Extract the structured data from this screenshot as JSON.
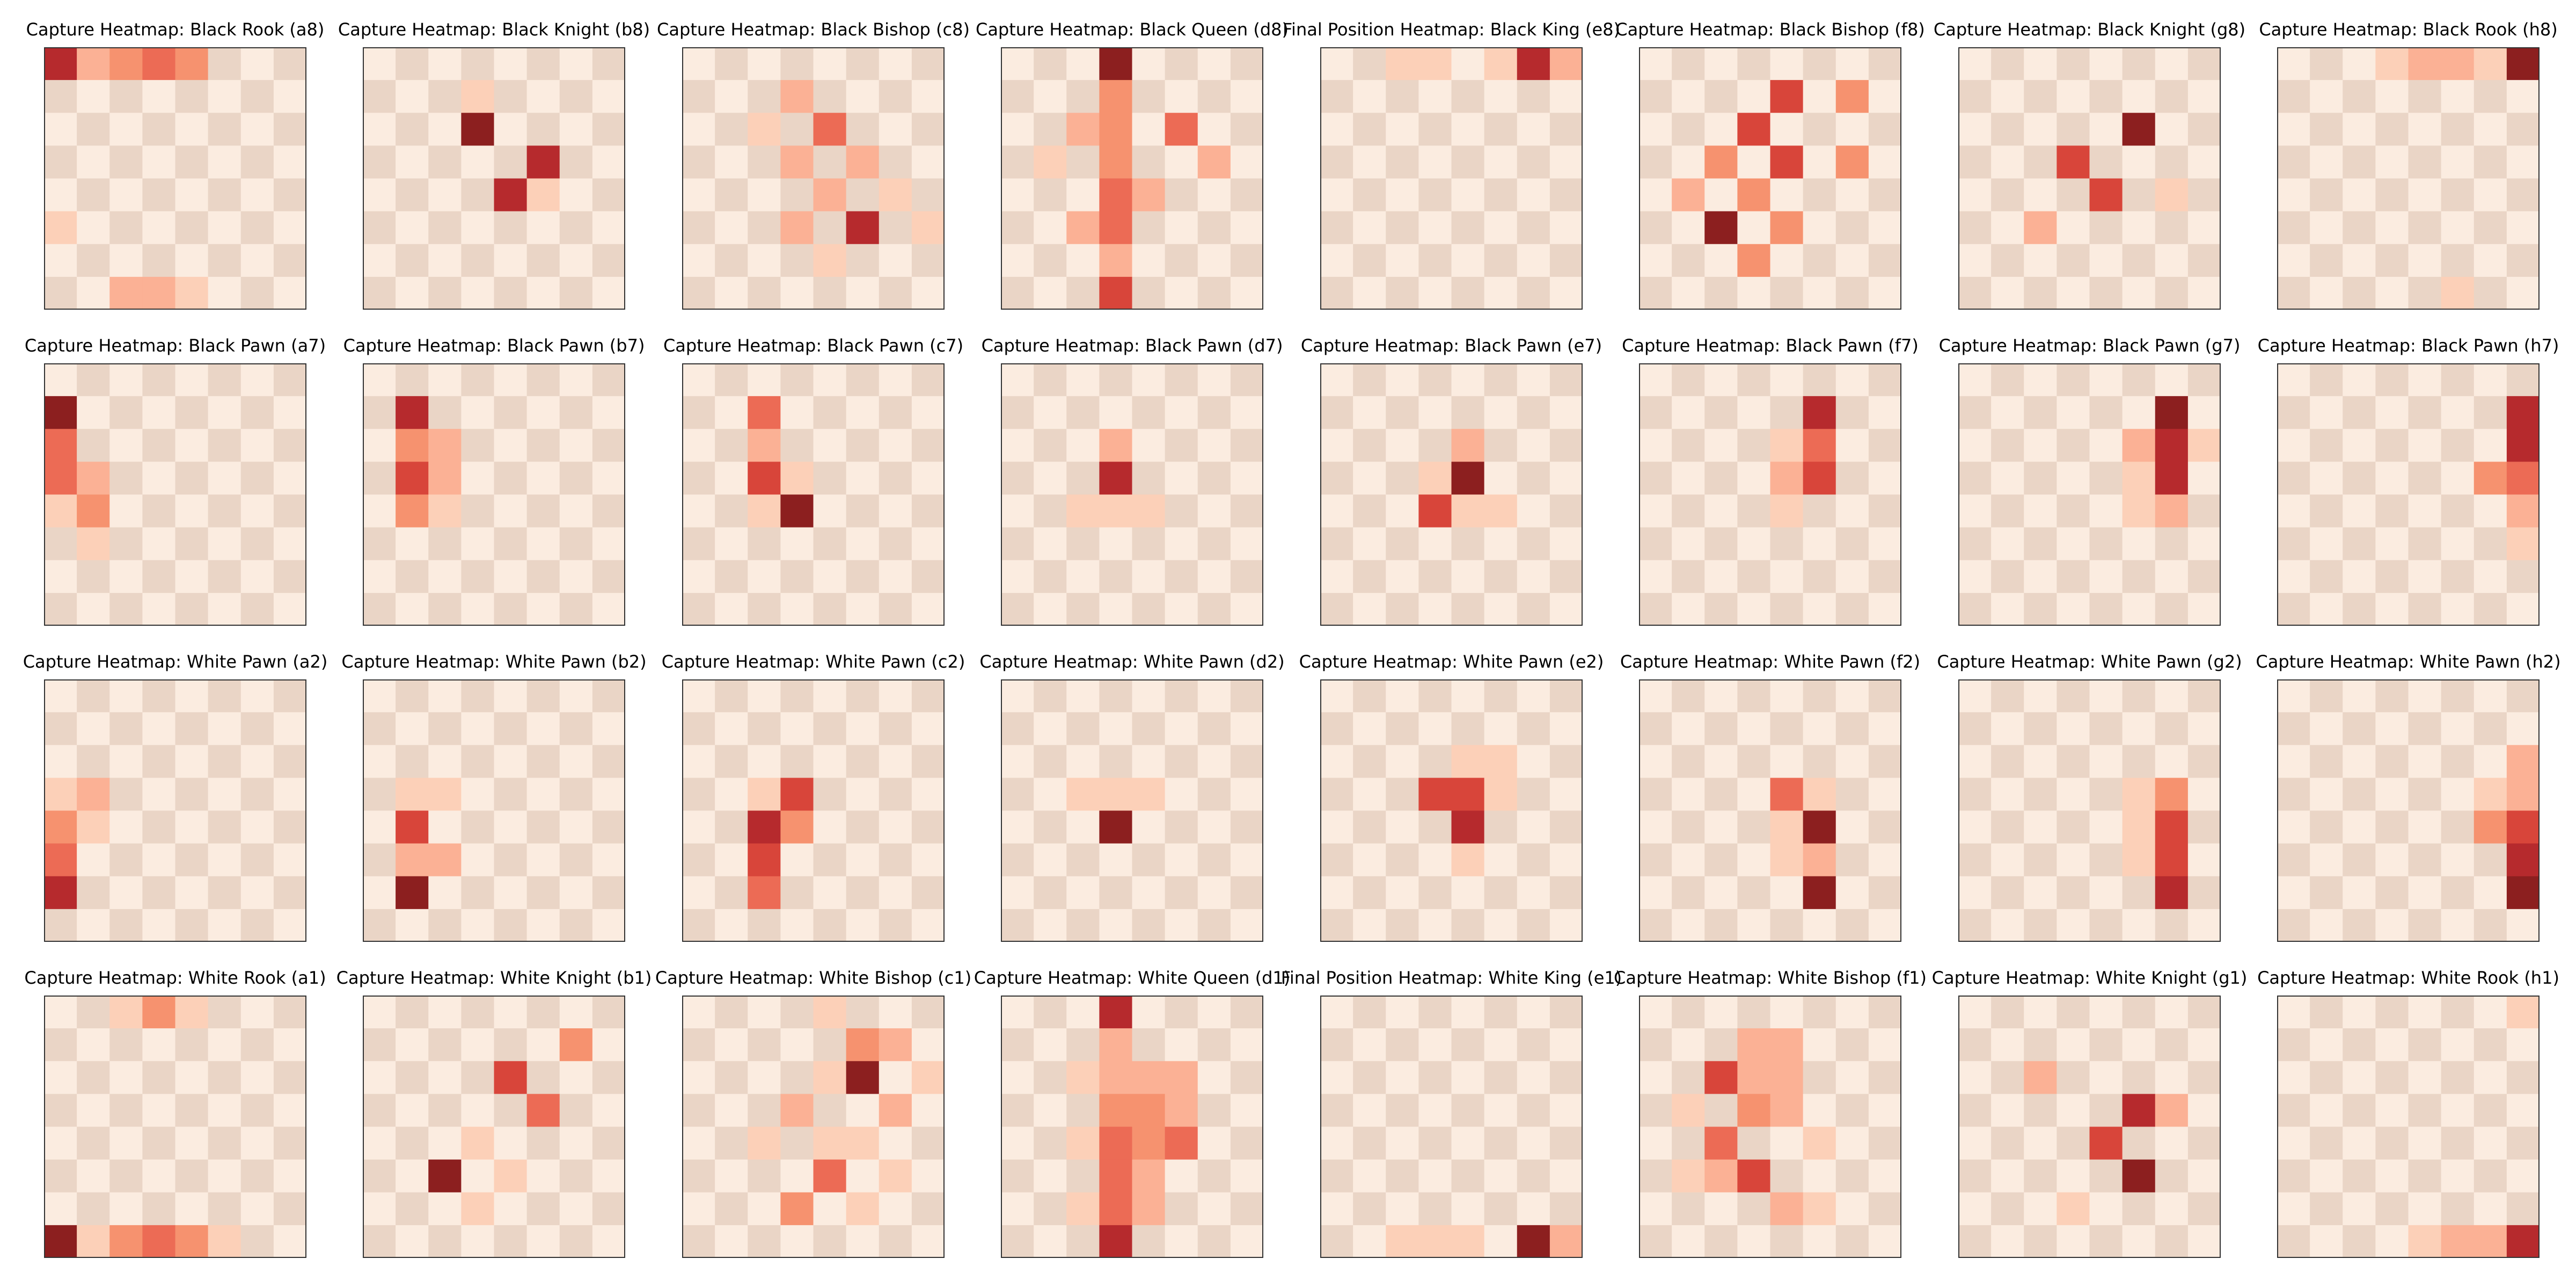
{
  "colors": {
    "light_square": "#fbece0",
    "dark_square": "#ead5c6",
    "scale": [
      "#fbece0",
      "#fcd0b8",
      "#fbb195",
      "#f6926f",
      "#ec6b55",
      "#d8453a",
      "#b62a2d",
      "#8c1f1f"
    ]
  },
  "chart_data": [
    {
      "type": "heatmap",
      "title": "Capture Heatmap: Black Rook (a8)",
      "cells": [
        [
          "a8",
          6
        ],
        [
          "b8",
          2
        ],
        [
          "c8",
          3
        ],
        [
          "d8",
          4
        ],
        [
          "e8",
          3
        ],
        [
          "a3",
          1
        ],
        [
          "c1",
          2
        ],
        [
          "d1",
          2
        ],
        [
          "e1",
          1
        ]
      ]
    },
    {
      "type": "heatmap",
      "title": "Capture Heatmap: Black Knight (b8)",
      "cells": [
        [
          "d6",
          7
        ],
        [
          "f5",
          6
        ],
        [
          "e4",
          6
        ],
        [
          "d7",
          1
        ],
        [
          "f4",
          1
        ]
      ]
    },
    {
      "type": "heatmap",
      "title": "Capture Heatmap: Black Bishop (c8)",
      "cells": [
        [
          "d7",
          2
        ],
        [
          "e6",
          4
        ],
        [
          "c6",
          1
        ],
        [
          "f5",
          2
        ],
        [
          "d5",
          2
        ],
        [
          "e4",
          2
        ],
        [
          "g4",
          1
        ],
        [
          "f3",
          6
        ],
        [
          "d3",
          2
        ],
        [
          "h3",
          1
        ],
        [
          "e2",
          1
        ]
      ]
    },
    {
      "type": "heatmap",
      "title": "Capture Heatmap: Black Queen (d8)",
      "cells": [
        [
          "d8",
          7
        ],
        [
          "d7",
          3
        ],
        [
          "d6",
          3
        ],
        [
          "f6",
          4
        ],
        [
          "d5",
          3
        ],
        [
          "d4",
          4
        ],
        [
          "e4",
          2
        ],
        [
          "d3",
          4
        ],
        [
          "d2",
          2
        ],
        [
          "d1",
          5
        ],
        [
          "c6",
          2
        ],
        [
          "g5",
          2
        ],
        [
          "c3",
          2
        ],
        [
          "b5",
          1
        ]
      ]
    },
    {
      "type": "heatmap",
      "title": "Final Position Heatmap: Black King (e8)",
      "cells": [
        [
          "g8",
          6
        ],
        [
          "h8",
          2
        ],
        [
          "f8",
          1
        ],
        [
          "c8",
          1
        ],
        [
          "d8",
          1
        ]
      ]
    },
    {
      "type": "heatmap",
      "title": "Capture Heatmap: Black Bishop (f8)",
      "cells": [
        [
          "e7",
          5
        ],
        [
          "g7",
          3
        ],
        [
          "d6",
          5
        ],
        [
          "c5",
          3
        ],
        [
          "e5",
          5
        ],
        [
          "g5",
          3
        ],
        [
          "b4",
          2
        ],
        [
          "d4",
          3
        ],
        [
          "c3",
          7
        ],
        [
          "e3",
          3
        ],
        [
          "d2",
          3
        ]
      ]
    },
    {
      "type": "heatmap",
      "title": "Capture Heatmap: Black Knight (g8)",
      "cells": [
        [
          "f6",
          7
        ],
        [
          "d5",
          5
        ],
        [
          "e4",
          5
        ],
        [
          "c3",
          2
        ],
        [
          "g4",
          1
        ]
      ]
    },
    {
      "type": "heatmap",
      "title": "Capture Heatmap: Black Rook (h8)",
      "cells": [
        [
          "h8",
          7
        ],
        [
          "d8",
          1
        ],
        [
          "e8",
          2
        ],
        [
          "f8",
          2
        ],
        [
          "g8",
          1
        ],
        [
          "f1",
          1
        ]
      ]
    },
    {
      "type": "heatmap",
      "title": "Capture Heatmap: Black Pawn (a7)",
      "cells": [
        [
          "a7",
          7
        ],
        [
          "a6",
          4
        ],
        [
          "a5",
          4
        ],
        [
          "b5",
          2
        ],
        [
          "a4",
          1
        ],
        [
          "b4",
          3
        ],
        [
          "b3",
          1
        ]
      ]
    },
    {
      "type": "heatmap",
      "title": "Capture Heatmap: Black Pawn (b7)",
      "cells": [
        [
          "b7",
          6
        ],
        [
          "b6",
          3
        ],
        [
          "c6",
          2
        ],
        [
          "b5",
          5
        ],
        [
          "c5",
          2
        ],
        [
          "b4",
          3
        ],
        [
          "c4",
          1
        ]
      ]
    },
    {
      "type": "heatmap",
      "title": "Capture Heatmap: Black Pawn (c7)",
      "cells": [
        [
          "c7",
          4
        ],
        [
          "c6",
          2
        ],
        [
          "c5",
          5
        ],
        [
          "d5",
          1
        ],
        [
          "c4",
          1
        ],
        [
          "d4",
          7
        ]
      ]
    },
    {
      "type": "heatmap",
      "title": "Capture Heatmap: Black Pawn (d7)",
      "cells": [
        [
          "d6",
          2
        ],
        [
          "d5",
          6
        ],
        [
          "c4",
          1
        ],
        [
          "d4",
          1
        ],
        [
          "e4",
          1
        ]
      ]
    },
    {
      "type": "heatmap",
      "title": "Capture Heatmap: Black Pawn (e7)",
      "cells": [
        [
          "e6",
          2
        ],
        [
          "e5",
          7
        ],
        [
          "d5",
          1
        ],
        [
          "d4",
          5
        ],
        [
          "e4",
          1
        ],
        [
          "f4",
          1
        ]
      ]
    },
    {
      "type": "heatmap",
      "title": "Capture Heatmap: Black Pawn (f7)",
      "cells": [
        [
          "f7",
          6
        ],
        [
          "f6",
          4
        ],
        [
          "e6",
          1
        ],
        [
          "f5",
          5
        ],
        [
          "e5",
          2
        ],
        [
          "e4",
          1
        ]
      ]
    },
    {
      "type": "heatmap",
      "title": "Capture Heatmap: Black Pawn (g7)",
      "cells": [
        [
          "g7",
          7
        ],
        [
          "g6",
          6
        ],
        [
          "f6",
          2
        ],
        [
          "h6",
          1
        ],
        [
          "g5",
          6
        ],
        [
          "f5",
          1
        ],
        [
          "g4",
          2
        ],
        [
          "f4",
          1
        ]
      ]
    },
    {
      "type": "heatmap",
      "title": "Capture Heatmap: Black Pawn (h7)",
      "cells": [
        [
          "h7",
          6
        ],
        [
          "h6",
          6
        ],
        [
          "h5",
          4
        ],
        [
          "g5",
          3
        ],
        [
          "h4",
          2
        ],
        [
          "h3",
          1
        ]
      ]
    },
    {
      "type": "heatmap",
      "title": "Capture Heatmap: White Pawn (a2)",
      "cells": [
        [
          "a5",
          1
        ],
        [
          "b5",
          2
        ],
        [
          "a4",
          3
        ],
        [
          "b4",
          1
        ],
        [
          "a3",
          4
        ],
        [
          "a2",
          6
        ]
      ]
    },
    {
      "type": "heatmap",
      "title": "Capture Heatmap: White Pawn (b2)",
      "cells": [
        [
          "b5",
          1
        ],
        [
          "c5",
          1
        ],
        [
          "b4",
          5
        ],
        [
          "b3",
          2
        ],
        [
          "c3",
          2
        ],
        [
          "b2",
          7
        ]
      ]
    },
    {
      "type": "heatmap",
      "title": "Capture Heatmap: White Pawn (c2)",
      "cells": [
        [
          "c5",
          1
        ],
        [
          "d5",
          5
        ],
        [
          "c4",
          6
        ],
        [
          "d4",
          3
        ],
        [
          "c3",
          5
        ],
        [
          "c2",
          4
        ]
      ]
    },
    {
      "type": "heatmap",
      "title": "Capture Heatmap: White Pawn (d2)",
      "cells": [
        [
          "c5",
          1
        ],
        [
          "d5",
          1
        ],
        [
          "e5",
          1
        ],
        [
          "d4",
          7
        ]
      ]
    },
    {
      "type": "heatmap",
      "title": "Capture Heatmap: White Pawn (e2)",
      "cells": [
        [
          "e6",
          1
        ],
        [
          "f6",
          1
        ],
        [
          "d5",
          5
        ],
        [
          "e5",
          5
        ],
        [
          "f5",
          1
        ],
        [
          "e4",
          6
        ],
        [
          "e3",
          1
        ]
      ]
    },
    {
      "type": "heatmap",
      "title": "Capture Heatmap: White Pawn (f2)",
      "cells": [
        [
          "e5",
          4
        ],
        [
          "f5",
          1
        ],
        [
          "e4",
          1
        ],
        [
          "f4",
          7
        ],
        [
          "f3",
          2
        ],
        [
          "e3",
          1
        ],
        [
          "f2",
          7
        ]
      ]
    },
    {
      "type": "heatmap",
      "title": "Capture Heatmap: White Pawn (g2)",
      "cells": [
        [
          "f5",
          1
        ],
        [
          "g5",
          3
        ],
        [
          "f4",
          1
        ],
        [
          "g4",
          5
        ],
        [
          "f3",
          1
        ],
        [
          "g3",
          5
        ],
        [
          "g2",
          6
        ]
      ]
    },
    {
      "type": "heatmap",
      "title": "Capture Heatmap: White Pawn (h2)",
      "cells": [
        [
          "h6",
          2
        ],
        [
          "g5",
          1
        ],
        [
          "h5",
          2
        ],
        [
          "g4",
          3
        ],
        [
          "h4",
          5
        ],
        [
          "h3",
          6
        ],
        [
          "h2",
          7
        ]
      ]
    },
    {
      "type": "heatmap",
      "title": "Capture Heatmap: White Rook (a1)",
      "cells": [
        [
          "d8",
          3
        ],
        [
          "c8",
          1
        ],
        [
          "e8",
          1
        ],
        [
          "a1",
          7
        ],
        [
          "b1",
          1
        ],
        [
          "c1",
          3
        ],
        [
          "d1",
          4
        ],
        [
          "e1",
          3
        ],
        [
          "f1",
          1
        ]
      ]
    },
    {
      "type": "heatmap",
      "title": "Capture Heatmap: White Knight (b1)",
      "cells": [
        [
          "g7",
          3
        ],
        [
          "e6",
          5
        ],
        [
          "f5",
          4
        ],
        [
          "d4",
          1
        ],
        [
          "c3",
          7
        ],
        [
          "e3",
          1
        ],
        [
          "d2",
          1
        ]
      ]
    },
    {
      "type": "heatmap",
      "title": "Capture Heatmap: White Bishop (c1)",
      "cells": [
        [
          "e8",
          1
        ],
        [
          "f7",
          3
        ],
        [
          "g7",
          2
        ],
        [
          "f6",
          7
        ],
        [
          "e6",
          1
        ],
        [
          "h6",
          1
        ],
        [
          "d5",
          2
        ],
        [
          "g5",
          2
        ],
        [
          "c4",
          1
        ],
        [
          "e4",
          1
        ],
        [
          "f4",
          1
        ],
        [
          "e3",
          4
        ],
        [
          "g3",
          1
        ],
        [
          "d2",
          3
        ],
        [
          "f2",
          1
        ]
      ]
    },
    {
      "type": "heatmap",
      "title": "Capture Heatmap: White Queen (d1)",
      "cells": [
        [
          "d8",
          6
        ],
        [
          "d7",
          2
        ],
        [
          "d6",
          2
        ],
        [
          "c6",
          1
        ],
        [
          "e6",
          2
        ],
        [
          "f6",
          2
        ],
        [
          "d5",
          3
        ],
        [
          "e5",
          3
        ],
        [
          "f5",
          2
        ],
        [
          "d4",
          4
        ],
        [
          "e4",
          3
        ],
        [
          "c4",
          1
        ],
        [
          "f4",
          4
        ],
        [
          "d3",
          4
        ],
        [
          "e3",
          2
        ],
        [
          "d2",
          4
        ],
        [
          "e2",
          2
        ],
        [
          "d1",
          6
        ],
        [
          "c2",
          1
        ]
      ]
    },
    {
      "type": "heatmap",
      "title": "Final Position Heatmap: White King (e1)",
      "cells": [
        [
          "g1",
          7
        ],
        [
          "h1",
          2
        ],
        [
          "c1",
          1
        ],
        [
          "e1",
          1
        ],
        [
          "d1",
          1
        ]
      ]
    },
    {
      "type": "heatmap",
      "title": "Capture Heatmap: White Bishop (f1)",
      "cells": [
        [
          "d7",
          2
        ],
        [
          "e7",
          2
        ],
        [
          "c6",
          5
        ],
        [
          "d6",
          2
        ],
        [
          "e6",
          2
        ],
        [
          "b5",
          1
        ],
        [
          "d5",
          3
        ],
        [
          "e5",
          2
        ],
        [
          "c4",
          4
        ],
        [
          "f4",
          1
        ],
        [
          "b3",
          1
        ],
        [
          "c3",
          2
        ],
        [
          "d3",
          5
        ],
        [
          "e2",
          2
        ],
        [
          "f2",
          1
        ]
      ]
    },
    {
      "type": "heatmap",
      "title": "Capture Heatmap: White Knight (g1)",
      "cells": [
        [
          "c6",
          2
        ],
        [
          "f5",
          6
        ],
        [
          "g5",
          2
        ],
        [
          "e4",
          5
        ],
        [
          "f3",
          7
        ],
        [
          "d2",
          1
        ]
      ]
    },
    {
      "type": "heatmap",
      "title": "Capture Heatmap: White Rook (h1)",
      "cells": [
        [
          "h8",
          1
        ],
        [
          "e1",
          1
        ],
        [
          "f1",
          2
        ],
        [
          "g1",
          2
        ],
        [
          "h1",
          6
        ]
      ]
    }
  ]
}
